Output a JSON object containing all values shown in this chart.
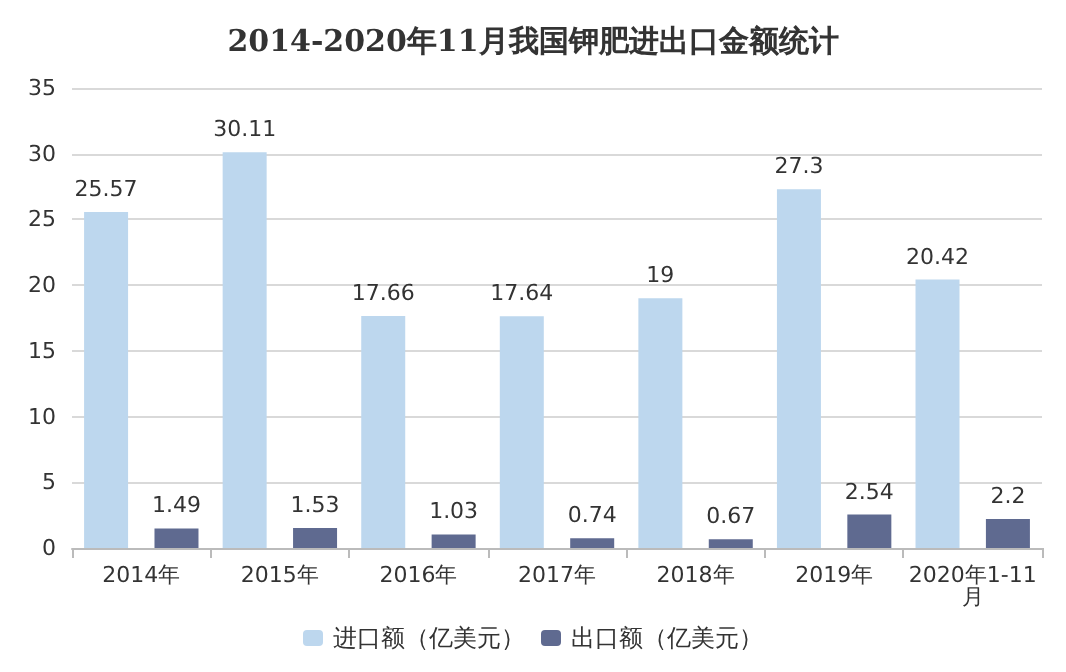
{
  "chart_data": {
    "type": "bar",
    "title": "2014-2020年11月我国钾肥进出口金额统计",
    "categories": [
      "2014年",
      "2015年",
      "2016年",
      "2017年",
      "2018年",
      "2019年",
      "2020年1-11月"
    ],
    "series": [
      {
        "name": "进口额（亿美元）",
        "color": "#bdd7ee",
        "values": [
          25.57,
          30.11,
          17.66,
          17.64,
          19,
          27.3,
          20.42
        ]
      },
      {
        "name": "出口额（亿美元）",
        "color": "#5f6a90",
        "values": [
          1.49,
          1.53,
          1.03,
          0.74,
          0.67,
          2.54,
          2.2
        ]
      }
    ],
    "ylim": [
      0,
      35
    ],
    "yticks": [
      0,
      5,
      10,
      15,
      20,
      25,
      30,
      35
    ],
    "grid": "y",
    "legend": "bottom",
    "data_labels": true
  }
}
